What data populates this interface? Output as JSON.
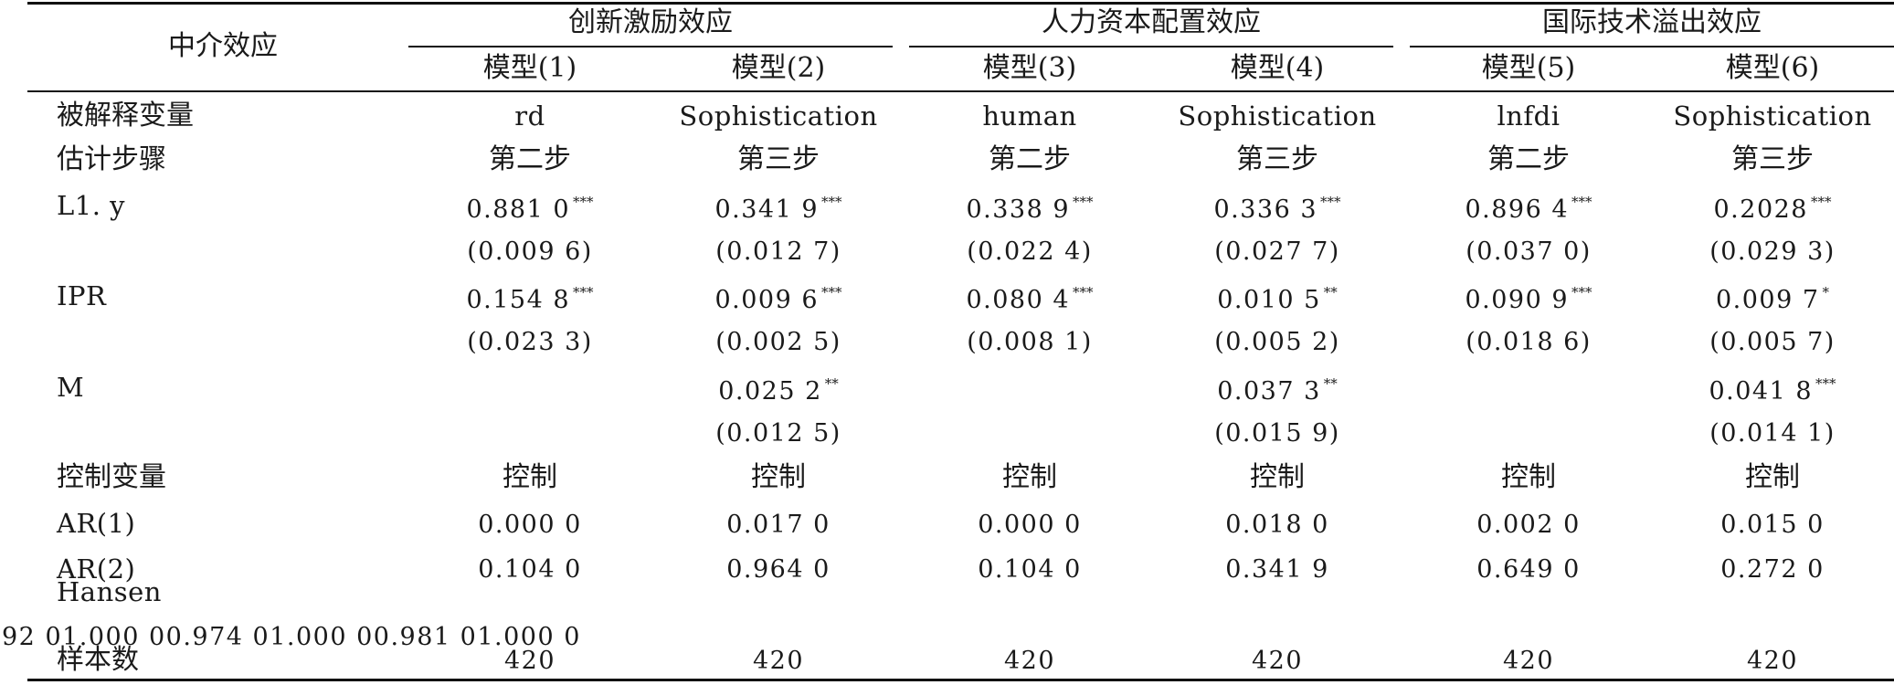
{
  "table": {
    "stub_header": "中介效应",
    "groups": [
      {
        "label": "创新激励效应",
        "models": [
          "模型(1)",
          "模型(2)"
        ]
      },
      {
        "label": "人力资本配置效应",
        "models": [
          "模型(3)",
          "模型(4)"
        ]
      },
      {
        "label": "国际技术溢出效应",
        "models": [
          "模型(5)",
          "模型(6)"
        ]
      }
    ],
    "rows": {
      "dep_var": {
        "label": "被解释变量",
        "cells": [
          "rd",
          "Sophistication",
          "human",
          "Sophistication",
          "lnfdi",
          "Sophistication"
        ]
      },
      "step": {
        "label": "估计步骤",
        "cells": [
          "第二步",
          "第三步",
          "第二步",
          "第三步",
          "第二步",
          "第三步"
        ]
      },
      "l1y": {
        "label": "L1. y",
        "coef": [
          "0.881 0",
          "0.341 9",
          "0.338 9",
          "0.336 3",
          "0.896 4",
          "0.2028"
        ],
        "sig": [
          "***",
          "***",
          "***",
          "***",
          "***",
          "***"
        ],
        "se": [
          "(0.009 6)",
          "(0.012 7)",
          "(0.022 4)",
          "(0.027 7)",
          "(0.037 0)",
          "(0.029 3)"
        ]
      },
      "ipr": {
        "label": "IPR",
        "coef": [
          "0.154 8",
          "0.009 6",
          "0.080 4",
          "0.010 5",
          "0.090 9",
          "0.009 7"
        ],
        "sig": [
          "***",
          "***",
          "***",
          "**",
          "***",
          "*"
        ],
        "se": [
          "(0.023 3)",
          "(0.002 5)",
          "(0.008 1)",
          "(0.005 2)",
          "(0.018 6)",
          "(0.005 7)"
        ]
      },
      "m": {
        "label": "M",
        "coef": [
          "",
          "0.025 2",
          "",
          "0.037 3",
          "",
          "0.041 8"
        ],
        "sig": [
          "",
          "**",
          "",
          "**",
          "",
          "***"
        ],
        "se": [
          "",
          "(0.012 5)",
          "",
          "(0.015 9)",
          "",
          "(0.014 1)"
        ]
      },
      "controls": {
        "label": "控制变量",
        "cells": [
          "控制",
          "控制",
          "控制",
          "控制",
          "控制",
          "控制"
        ]
      },
      "ar1": {
        "label": "AR(1)",
        "cells": [
          "0.000 0",
          "0.017 0",
          "0.000 0",
          "0.018 0",
          "0.002 0",
          "0.015 0"
        ]
      },
      "ar2": {
        "label": "AR(2)",
        "cells": [
          "0.104 0",
          "0.964 0",
          "0.104 0",
          "0.341 9",
          "0.649 0",
          "0.272 0"
        ]
      },
      "hansen": {
        "label": "Hansen",
        "garbled_line": "92 01.000 00.974 01.000 00.981 01.000 0"
      },
      "n": {
        "label": "样本数",
        "cells": [
          "420",
          "420",
          "420",
          "420",
          "420",
          "420"
        ]
      }
    }
  }
}
